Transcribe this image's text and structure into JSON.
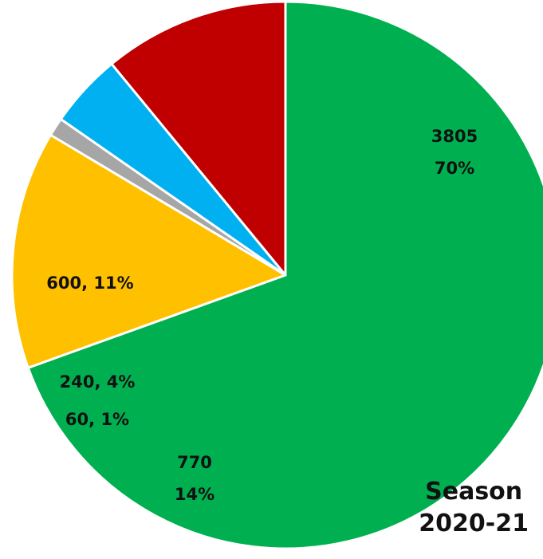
{
  "chart_data": {
    "type": "pie",
    "title_line1": "Season",
    "title_line2": "2020-21",
    "slices": [
      {
        "value": 3805,
        "percent": "70%",
        "color": "#00b050",
        "label_lines": [
          "3805",
          "70%"
        ]
      },
      {
        "value": 770,
        "percent": "14%",
        "color": "#ffc000",
        "label_lines": [
          "770",
          "14%"
        ]
      },
      {
        "value": 60,
        "percent": "1%",
        "color": "#a6a6a6",
        "label_lines": [
          "60, 1%"
        ]
      },
      {
        "value": 240,
        "percent": "4%",
        "color": "#00b0f0",
        "label_lines": [
          "240, 4%"
        ]
      },
      {
        "value": 600,
        "percent": "11%",
        "color": "#c00000",
        "label_lines": [
          "600, 11%"
        ]
      }
    ],
    "start_angle_deg": 0,
    "direction": "clockwise"
  }
}
